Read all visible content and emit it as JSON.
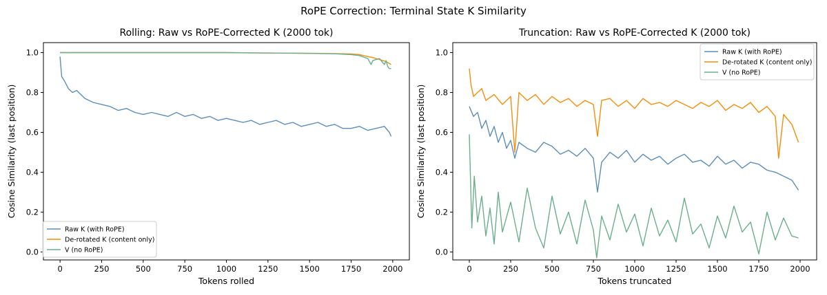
{
  "figure_title": "RoPE Correction: Terminal State K Similarity",
  "colors": {
    "raw": "#5b8db8",
    "derot": "#f28e0b",
    "v": "#6aae8c"
  },
  "chart_data": [
    {
      "type": "line",
      "title": "Rolling: Raw vs RoPE-Corrected K (2000 tok)",
      "xlabel": "Tokens rolled",
      "ylabel": "Cosine Similarity (last position)",
      "xlim": [
        -100,
        2100
      ],
      "ylim": [
        -0.04,
        1.05
      ],
      "xticks": [
        0,
        250,
        500,
        750,
        1000,
        1250,
        1500,
        1750,
        2000
      ],
      "yticks": [
        0.0,
        0.2,
        0.4,
        0.6,
        0.8,
        1.0
      ],
      "legend_position": "lower-left",
      "series": [
        {
          "name": "Raw K (with RoPE)",
          "color_key": "raw",
          "x": [
            0,
            10,
            25,
            50,
            75,
            100,
            150,
            200,
            250,
            300,
            350,
            400,
            450,
            500,
            550,
            600,
            650,
            700,
            750,
            800,
            850,
            900,
            950,
            1000,
            1050,
            1100,
            1150,
            1200,
            1250,
            1300,
            1350,
            1400,
            1450,
            1500,
            1550,
            1600,
            1650,
            1700,
            1750,
            1800,
            1850,
            1900,
            1950,
            1980,
            1990
          ],
          "y": [
            0.98,
            0.88,
            0.86,
            0.82,
            0.8,
            0.81,
            0.77,
            0.75,
            0.74,
            0.73,
            0.71,
            0.72,
            0.7,
            0.69,
            0.7,
            0.69,
            0.68,
            0.7,
            0.68,
            0.69,
            0.67,
            0.68,
            0.66,
            0.67,
            0.66,
            0.65,
            0.66,
            0.64,
            0.65,
            0.66,
            0.64,
            0.65,
            0.63,
            0.64,
            0.65,
            0.63,
            0.64,
            0.62,
            0.62,
            0.63,
            0.61,
            0.62,
            0.63,
            0.6,
            0.58
          ]
        },
        {
          "name": "De-rotated K (content only)",
          "color_key": "derot",
          "x": [
            0,
            250,
            500,
            750,
            1000,
            1250,
            1500,
            1650,
            1750,
            1800,
            1850,
            1880,
            1900,
            1920,
            1940,
            1960,
            1980,
            1990
          ],
          "y": [
            1.0,
            1.0,
            1.0,
            1.0,
            1.0,
            0.998,
            0.997,
            0.995,
            0.993,
            0.99,
            0.98,
            0.975,
            0.97,
            0.965,
            0.96,
            0.955,
            0.945,
            0.94
          ]
        },
        {
          "name": "V (no RoPE)",
          "color_key": "v",
          "x": [
            0,
            250,
            500,
            750,
            1000,
            1250,
            1500,
            1650,
            1750,
            1800,
            1850,
            1870,
            1880,
            1900,
            1920,
            1940,
            1950,
            1960,
            1970,
            1980,
            1990
          ],
          "y": [
            1.0,
            1.0,
            1.0,
            1.0,
            1.0,
            0.998,
            0.996,
            0.994,
            0.99,
            0.985,
            0.97,
            0.94,
            0.96,
            0.965,
            0.97,
            0.95,
            0.94,
            0.96,
            0.93,
            0.92,
            0.92
          ]
        }
      ]
    },
    {
      "type": "line",
      "title": "Truncation: Raw vs RoPE-Corrected K (2000 tok)",
      "xlabel": "Tokens truncated",
      "ylabel": "Cosine Similarity (last position)",
      "xlim": [
        -100,
        2100
      ],
      "ylim": [
        -0.04,
        1.05
      ],
      "xticks": [
        0,
        250,
        500,
        750,
        1000,
        1250,
        1500,
        1750,
        2000
      ],
      "yticks": [
        0.0,
        0.2,
        0.4,
        0.6,
        0.8,
        1.0
      ],
      "legend_position": "top-right",
      "series": [
        {
          "name": "Raw K (with RoPE)",
          "color_key": "raw",
          "x": [
            0,
            25,
            50,
            75,
            100,
            125,
            150,
            175,
            200,
            225,
            250,
            275,
            300,
            350,
            400,
            450,
            500,
            550,
            600,
            650,
            700,
            750,
            775,
            800,
            850,
            900,
            950,
            1000,
            1050,
            1100,
            1150,
            1200,
            1250,
            1300,
            1350,
            1400,
            1450,
            1500,
            1550,
            1600,
            1650,
            1700,
            1750,
            1800,
            1850,
            1900,
            1950,
            1990
          ],
          "y": [
            0.73,
            0.68,
            0.7,
            0.62,
            0.66,
            0.58,
            0.63,
            0.55,
            0.6,
            0.52,
            0.56,
            0.47,
            0.55,
            0.52,
            0.5,
            0.55,
            0.53,
            0.49,
            0.51,
            0.48,
            0.52,
            0.47,
            0.3,
            0.45,
            0.5,
            0.47,
            0.51,
            0.45,
            0.49,
            0.46,
            0.48,
            0.44,
            0.47,
            0.49,
            0.45,
            0.46,
            0.43,
            0.48,
            0.44,
            0.46,
            0.42,
            0.45,
            0.44,
            0.41,
            0.4,
            0.38,
            0.36,
            0.31
          ]
        },
        {
          "name": "De-rotated K (content only)",
          "color_key": "derot",
          "x": [
            0,
            10,
            25,
            50,
            75,
            100,
            150,
            200,
            250,
            275,
            300,
            350,
            400,
            450,
            500,
            550,
            600,
            650,
            700,
            750,
            775,
            800,
            850,
            900,
            950,
            1000,
            1050,
            1100,
            1150,
            1200,
            1250,
            1300,
            1350,
            1400,
            1450,
            1500,
            1550,
            1600,
            1650,
            1700,
            1750,
            1800,
            1850,
            1870,
            1900,
            1950,
            1990
          ],
          "y": [
            0.92,
            0.84,
            0.78,
            0.8,
            0.82,
            0.76,
            0.79,
            0.74,
            0.78,
            0.5,
            0.8,
            0.76,
            0.79,
            0.74,
            0.78,
            0.75,
            0.77,
            0.73,
            0.76,
            0.74,
            0.58,
            0.76,
            0.77,
            0.73,
            0.76,
            0.72,
            0.77,
            0.74,
            0.75,
            0.73,
            0.76,
            0.74,
            0.72,
            0.75,
            0.73,
            0.76,
            0.71,
            0.74,
            0.72,
            0.75,
            0.7,
            0.73,
            0.68,
            0.47,
            0.69,
            0.64,
            0.55
          ]
        },
        {
          "name": "V (no RoPE)",
          "color_key": "v",
          "x": [
            0,
            15,
            30,
            50,
            75,
            100,
            125,
            150,
            175,
            200,
            250,
            300,
            350,
            400,
            450,
            500,
            550,
            600,
            650,
            700,
            750,
            770,
            800,
            850,
            900,
            950,
            1000,
            1050,
            1100,
            1150,
            1200,
            1250,
            1300,
            1350,
            1400,
            1450,
            1500,
            1550,
            1600,
            1650,
            1700,
            1750,
            1800,
            1850,
            1900,
            1950,
            1990
          ],
          "y": [
            0.59,
            0.12,
            0.38,
            0.15,
            0.28,
            0.08,
            0.22,
            0.04,
            0.3,
            0.1,
            0.25,
            0.05,
            0.32,
            0.12,
            0.02,
            0.28,
            0.09,
            0.2,
            0.04,
            0.26,
            0.11,
            -0.03,
            0.18,
            0.06,
            0.24,
            0.1,
            0.19,
            0.03,
            0.22,
            0.08,
            0.16,
            0.05,
            0.27,
            0.09,
            0.14,
            0.02,
            0.18,
            0.07,
            0.23,
            0.1,
            0.15,
            -0.01,
            0.2,
            0.06,
            0.17,
            0.08,
            0.07
          ]
        }
      ]
    }
  ]
}
